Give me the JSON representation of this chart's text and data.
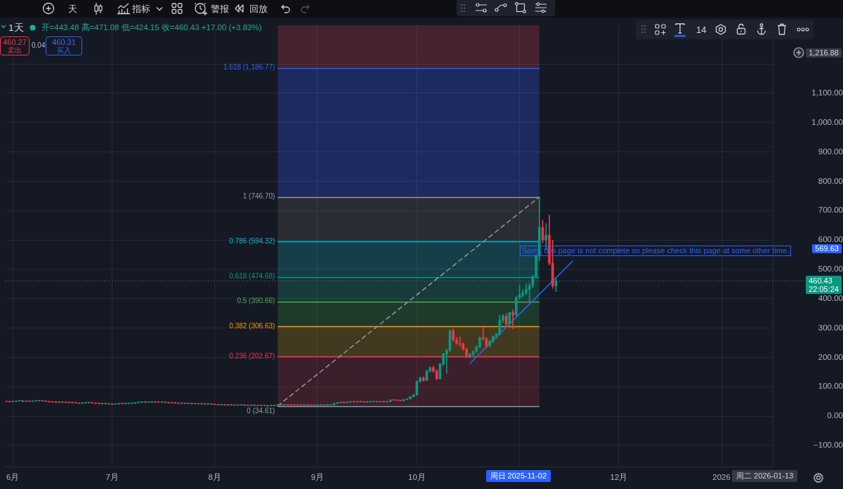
{
  "chart_data": {
    "type": "candlestick",
    "title": "1天",
    "subtitle": "开=443.48 高=471.08 低=424.15 收=460.43 +17.00 (+3.83%)",
    "x": [
      "2025-05-30",
      "2025-05-31",
      "2025-06-01",
      "2025-06-02",
      "2025-06-03",
      "2025-06-04",
      "2025-06-05",
      "2025-06-06",
      "2025-06-07",
      "2025-06-08",
      "2025-06-09",
      "2025-06-10",
      "2025-06-11",
      "2025-06-12",
      "2025-06-13",
      "2025-06-14",
      "2025-06-15",
      "2025-06-16",
      "2025-06-17",
      "2025-06-18",
      "2025-06-19",
      "2025-06-20",
      "2025-06-21",
      "2025-06-22",
      "2025-06-23",
      "2025-06-24",
      "2025-06-25",
      "2025-06-26",
      "2025-06-27",
      "2025-06-28",
      "2025-06-29",
      "2025-06-30",
      "2025-07-01",
      "2025-07-02",
      "2025-07-03",
      "2025-07-04",
      "2025-07-05",
      "2025-07-06",
      "2025-07-07",
      "2025-07-08",
      "2025-07-09",
      "2025-07-10",
      "2025-07-11",
      "2025-07-12",
      "2025-07-13",
      "2025-07-14",
      "2025-07-15",
      "2025-07-16",
      "2025-07-17",
      "2025-07-18",
      "2025-07-19",
      "2025-07-20",
      "2025-07-21",
      "2025-07-22",
      "2025-07-23",
      "2025-07-24",
      "2025-07-25",
      "2025-07-26",
      "2025-07-27",
      "2025-07-28",
      "2025-07-29",
      "2025-07-30",
      "2025-07-31",
      "2025-08-01",
      "2025-08-02",
      "2025-08-03",
      "2025-08-04",
      "2025-08-05",
      "2025-08-06",
      "2025-08-07",
      "2025-08-08",
      "2025-08-09",
      "2025-08-10",
      "2025-08-11",
      "2025-08-12",
      "2025-08-13",
      "2025-08-14",
      "2025-08-15",
      "2025-08-16",
      "2025-08-17",
      "2025-08-18",
      "2025-08-19",
      "2025-08-20",
      "2025-08-21",
      "2025-08-22",
      "2025-08-23",
      "2025-08-24",
      "2025-08-25",
      "2025-08-26",
      "2025-08-27",
      "2025-08-28",
      "2025-08-29",
      "2025-08-30",
      "2025-08-31",
      "2025-09-01",
      "2025-09-02",
      "2025-09-03",
      "2025-09-04",
      "2025-09-05",
      "2025-09-06",
      "2025-09-07",
      "2025-09-08",
      "2025-09-09",
      "2025-09-10",
      "2025-09-11",
      "2025-09-12",
      "2025-09-13",
      "2025-09-14",
      "2025-09-15",
      "2025-09-16",
      "2025-09-17",
      "2025-09-18",
      "2025-09-19",
      "2025-09-20",
      "2025-09-21",
      "2025-09-22",
      "2025-09-23",
      "2025-09-24",
      "2025-09-25",
      "2025-09-26",
      "2025-09-27",
      "2025-09-28",
      "2025-09-29",
      "2025-09-30",
      "2025-10-01",
      "2025-10-02",
      "2025-10-03",
      "2025-10-04",
      "2025-10-05",
      "2025-10-06",
      "2025-10-07",
      "2025-10-08",
      "2025-10-09",
      "2025-10-10",
      "2025-10-11",
      "2025-10-12",
      "2025-10-13",
      "2025-10-14",
      "2025-10-15",
      "2025-10-16",
      "2025-10-17",
      "2025-10-18",
      "2025-10-19",
      "2025-10-20",
      "2025-10-21",
      "2025-10-22",
      "2025-10-23",
      "2025-10-24",
      "2025-10-25",
      "2025-10-26",
      "2025-10-27",
      "2025-10-28",
      "2025-10-29",
      "2025-10-30",
      "2025-10-31",
      "2025-11-01",
      "2025-11-02",
      "2025-11-03",
      "2025-11-04",
      "2025-11-05",
      "2025-11-06",
      "2025-11-07",
      "2025-11-08",
      "2025-11-09",
      "2025-11-10",
      "2025-11-11",
      "2025-11-12"
    ],
    "ohlc": [
      [
        51,
        52,
        48,
        49
      ],
      [
        49,
        50,
        47.5,
        48.5
      ],
      [
        48.5,
        50,
        48,
        49.5
      ],
      [
        49.5,
        51.5,
        49,
        51
      ],
      [
        51,
        53,
        50.5,
        52.5
      ],
      [
        52.5,
        53,
        49,
        49.5
      ],
      [
        49.5,
        51,
        49,
        50.5
      ],
      [
        50.5,
        51.5,
        49.5,
        50
      ],
      [
        50,
        51.5,
        49.5,
        51
      ],
      [
        51,
        52,
        50,
        51.5
      ],
      [
        51.5,
        52.5,
        50.5,
        51
      ],
      [
        51,
        52.5,
        50.5,
        52
      ],
      [
        52,
        52.5,
        49,
        49.5
      ],
      [
        49.5,
        50,
        47.5,
        48
      ],
      [
        48,
        48.5,
        46.5,
        47.5
      ],
      [
        47.5,
        48,
        46.5,
        47
      ],
      [
        47,
        47.5,
        45.5,
        46.5
      ],
      [
        46.5,
        47.5,
        46,
        47
      ],
      [
        47,
        47.5,
        45.5,
        46
      ],
      [
        46,
        46.5,
        45,
        45.5
      ],
      [
        45.5,
        46,
        44.5,
        45
      ],
      [
        45,
        45.5,
        43.5,
        44
      ],
      [
        44,
        44.5,
        42.5,
        43
      ],
      [
        43,
        45,
        42.5,
        44.5
      ],
      [
        44.5,
        46,
        44,
        45.5
      ],
      [
        45.5,
        46.5,
        44.5,
        45
      ],
      [
        45,
        45.5,
        43.5,
        44
      ],
      [
        44,
        44.5,
        42.5,
        43
      ],
      [
        43,
        43.5,
        41.5,
        42
      ],
      [
        42,
        42.5,
        40.5,
        41.5
      ],
      [
        41.5,
        42.5,
        40.5,
        42
      ],
      [
        42,
        42.5,
        40,
        40.5
      ],
      [
        40.5,
        41,
        39.5,
        40
      ],
      [
        40,
        41.5,
        39.5,
        41
      ],
      [
        41,
        42.5,
        40.5,
        42
      ],
      [
        42,
        42.5,
        41,
        41.5
      ],
      [
        41.5,
        43,
        41,
        42.5
      ],
      [
        42.5,
        43.5,
        42,
        43
      ],
      [
        43,
        44,
        42.5,
        43.5
      ],
      [
        43.5,
        46.5,
        43,
        46
      ],
      [
        46,
        47,
        45,
        46.5
      ],
      [
        46.5,
        48,
        46,
        47.5
      ],
      [
        47.5,
        48,
        46,
        46.5
      ],
      [
        46.5,
        47.5,
        46,
        47
      ],
      [
        47,
        48,
        46.5,
        47.5
      ],
      [
        47.5,
        48.5,
        46.5,
        47
      ],
      [
        47,
        47.5,
        46,
        46.5
      ],
      [
        46.5,
        47.5,
        46,
        47
      ],
      [
        47,
        47.5,
        45.5,
        46
      ],
      [
        46,
        46.5,
        44.5,
        45
      ],
      [
        45,
        45.5,
        44,
        44.5
      ],
      [
        44.5,
        45,
        43.5,
        44
      ],
      [
        44,
        44.5,
        42.5,
        43
      ],
      [
        43,
        44,
        42,
        43.5
      ],
      [
        43.5,
        44,
        42,
        42.5
      ],
      [
        42.5,
        43.5,
        41.5,
        43
      ],
      [
        43,
        43.5,
        41,
        41.5
      ],
      [
        41.5,
        42.5,
        41,
        42
      ],
      [
        42,
        42.5,
        40.5,
        41
      ],
      [
        41,
        42,
        40.5,
        41.5
      ],
      [
        41.5,
        42,
        40,
        40.5
      ],
      [
        40.5,
        41.5,
        40,
        41
      ],
      [
        41,
        41.5,
        39.5,
        40
      ],
      [
        40,
        40.5,
        38.5,
        39
      ],
      [
        39,
        39.5,
        37.5,
        38
      ],
      [
        38,
        39,
        37.5,
        38.5
      ],
      [
        38.5,
        39,
        37,
        37.5
      ],
      [
        37.5,
        38,
        36.5,
        37
      ],
      [
        37,
        38,
        36.5,
        37.5
      ],
      [
        37.5,
        38,
        36,
        36.5
      ],
      [
        36.5,
        37.5,
        36,
        37
      ],
      [
        37,
        38,
        36.5,
        37.5
      ],
      [
        37.5,
        38,
        36,
        36.5
      ],
      [
        36.5,
        37,
        35.5,
        36
      ],
      [
        36,
        37,
        35.5,
        36.5
      ],
      [
        36.5,
        37,
        35.5,
        36
      ],
      [
        36,
        36.5,
        35,
        35.5
      ],
      [
        35.5,
        36.5,
        35,
        36
      ],
      [
        36,
        36.5,
        35,
        35.5
      ],
      [
        35.5,
        36,
        35,
        35.5
      ],
      [
        35.5,
        36,
        34.8,
        35
      ],
      [
        35,
        36,
        34.9,
        35.5
      ],
      [
        35.5,
        40,
        34.61,
        37.5
      ],
      [
        37.5,
        38,
        36.5,
        37
      ],
      [
        37,
        38.5,
        36.5,
        38
      ],
      [
        38,
        39,
        37,
        37.5
      ],
      [
        37.5,
        38,
        36.5,
        37
      ],
      [
        37,
        37.5,
        36,
        36.5
      ],
      [
        36.5,
        37.5,
        36,
        37
      ],
      [
        37,
        37.5,
        36,
        36.5
      ],
      [
        36.5,
        37.5,
        36,
        37
      ],
      [
        37,
        37.5,
        36,
        36.5
      ],
      [
        36.5,
        37,
        35.5,
        36
      ],
      [
        36,
        37,
        35.5,
        36.5
      ],
      [
        36.5,
        37.5,
        36,
        37
      ],
      [
        37,
        37.5,
        36,
        36.5
      ],
      [
        36.5,
        37.5,
        36,
        37
      ],
      [
        37,
        38,
        36.5,
        37.5
      ],
      [
        37.5,
        38.5,
        37,
        38
      ],
      [
        38,
        43.5,
        37.5,
        43
      ],
      [
        43,
        46,
        42.5,
        45.5
      ],
      [
        45.5,
        47.5,
        44.5,
        47
      ],
      [
        47,
        48,
        45,
        45.5
      ],
      [
        45.5,
        48,
        45,
        47.5
      ],
      [
        47.5,
        49,
        47,
        48.5
      ],
      [
        48.5,
        49.5,
        47.5,
        48
      ],
      [
        48,
        49.5,
        47.5,
        49
      ],
      [
        49,
        50,
        48,
        48.5
      ],
      [
        48.5,
        49,
        47,
        47.5
      ],
      [
        47.5,
        48.5,
        47,
        48
      ],
      [
        48,
        49,
        47.5,
        48.5
      ],
      [
        48.5,
        49.5,
        48,
        49
      ],
      [
        49,
        49.5,
        47.5,
        48
      ],
      [
        48,
        49,
        47.5,
        48.5
      ],
      [
        48.5,
        49,
        47.5,
        48
      ],
      [
        48,
        50,
        47.5,
        49.5
      ],
      [
        49.5,
        56,
        49,
        55
      ],
      [
        55,
        57,
        53,
        54
      ],
      [
        54,
        55,
        52,
        53
      ],
      [
        53,
        54,
        51.5,
        52.5
      ],
      [
        52.5,
        57,
        52,
        56.5
      ],
      [
        56.5,
        60,
        56,
        59
      ],
      [
        59,
        67,
        58,
        66
      ],
      [
        66,
        74,
        64,
        72
      ],
      [
        72,
        120,
        71,
        118
      ],
      [
        118,
        133,
        114,
        130
      ],
      [
        130,
        134,
        119,
        122
      ],
      [
        122,
        157,
        120,
        153
      ],
      [
        153,
        168,
        150,
        165
      ],
      [
        165,
        170,
        150,
        153
      ],
      [
        153,
        158,
        124,
        127
      ],
      [
        127,
        180,
        125,
        177
      ],
      [
        177,
        214,
        172,
        212
      ],
      [
        212,
        228,
        146,
        224
      ],
      [
        224,
        294,
        220,
        291
      ],
      [
        291,
        296,
        255,
        259
      ],
      [
        259,
        268,
        244,
        248
      ],
      [
        248,
        270,
        238,
        245
      ],
      [
        245,
        250,
        224,
        228
      ],
      [
        228,
        232,
        200,
        204
      ],
      [
        204,
        214,
        198,
        210
      ],
      [
        210,
        222,
        206,
        220
      ],
      [
        220,
        240,
        216,
        236
      ],
      [
        236,
        270,
        232,
        267
      ],
      [
        267,
        303,
        258,
        263
      ],
      [
        263,
        268,
        234,
        240
      ],
      [
        240,
        258,
        236,
        255
      ],
      [
        255,
        274,
        250,
        271
      ],
      [
        271,
        282,
        264,
        279
      ],
      [
        279,
        345,
        276,
        326
      ],
      [
        326,
        346,
        318,
        341
      ],
      [
        341,
        350,
        308,
        314
      ],
      [
        314,
        356,
        310,
        353
      ],
      [
        353,
        362,
        298,
        345
      ],
      [
        345,
        407,
        340,
        404
      ],
      [
        404,
        447,
        398,
        412
      ],
      [
        412,
        430,
        405,
        420
      ],
      [
        420,
        450,
        414,
        432
      ],
      [
        432,
        452,
        389,
        444
      ],
      [
        444,
        480,
        438,
        475
      ],
      [
        475,
        550,
        470,
        545
      ],
      [
        545,
        746.7,
        530,
        643
      ],
      [
        643,
        667,
        590,
        600
      ],
      [
        600,
        656,
        569,
        616
      ],
      [
        616,
        685,
        515,
        521
      ],
      [
        521,
        600,
        435,
        443.48
      ],
      [
        443.48,
        471.08,
        424.15,
        460.43
      ]
    ],
    "colors": [
      "#f23645",
      "#f23645",
      "#089981",
      "#089981",
      "#089981",
      "#f23645",
      "#089981",
      "#f23645",
      "#089981",
      "#089981",
      "#f23645",
      "#089981",
      "#f23645",
      "#f23645",
      "#f23645",
      "#f23645",
      "#f23645",
      "#089981",
      "#f23645",
      "#f23645",
      "#f23645",
      "#f23645",
      "#f23645",
      "#089981",
      "#089981",
      "#f23645",
      "#f23645",
      "#f23645",
      "#f23645",
      "#f23645",
      "#089981",
      "#f23645",
      "#f23645",
      "#089981",
      "#089981",
      "#f23645",
      "#089981",
      "#089981",
      "#089981",
      "#089981",
      "#089981",
      "#089981",
      "#f23645",
      "#089981",
      "#089981",
      "#f23645",
      "#f23645",
      "#089981",
      "#f23645",
      "#f23645",
      "#f23645",
      "#f23645",
      "#f23645",
      "#089981",
      "#f23645",
      "#089981",
      "#f23645",
      "#089981",
      "#f23645",
      "#089981",
      "#f23645",
      "#089981",
      "#f23645",
      "#f23645",
      "#f23645",
      "#089981",
      "#f23645",
      "#f23645",
      "#089981",
      "#f23645",
      "#089981",
      "#089981",
      "#f23645",
      "#f23645",
      "#089981",
      "#f23645",
      "#f23645",
      "#089981",
      "#f23645",
      "#089981",
      "#f23645",
      "#089981",
      "#089981",
      "#f23645",
      "#089981",
      "#f23645",
      "#f23645",
      "#f23645",
      "#089981",
      "#f23645",
      "#089981",
      "#f23645",
      "#f23645",
      "#089981",
      "#089981",
      "#f23645",
      "#089981",
      "#089981",
      "#089981",
      "#089981",
      "#089981",
      "#089981",
      "#f23645",
      "#089981",
      "#089981",
      "#f23645",
      "#089981",
      "#f23645",
      "#f23645",
      "#089981",
      "#089981",
      "#089981",
      "#f23645",
      "#089981",
      "#f23645",
      "#089981",
      "#089981",
      "#f23645",
      "#f23645",
      "#f23645",
      "#089981",
      "#089981",
      "#089981",
      "#089981",
      "#089981",
      "#089981",
      "#f23645",
      "#089981",
      "#089981",
      "#f23645",
      "#f23645",
      "#089981",
      "#089981",
      "#089981",
      "#089981",
      "#f23645",
      "#f23645",
      "#f23645",
      "#f23645",
      "#f23645",
      "#089981",
      "#089981",
      "#089981",
      "#089981",
      "#f23645",
      "#f23645",
      "#089981",
      "#089981",
      "#089981",
      "#089981",
      "#089981",
      "#f23645",
      "#089981",
      "#f23645",
      "#089981",
      "#089981",
      "#089981",
      "#089981",
      "#089981",
      "#089981",
      "#089981",
      "#089981",
      "#f23645",
      "#089981",
      "#f23645",
      "#f23645",
      "#089981"
    ],
    "series": [
      {
        "type": "line",
        "x": [
          "2025-08-20",
          "2025-11-07"
        ],
        "values": [
          34.61,
          746.7
        ],
        "color": "#9598a1",
        "line_style": "dashed"
      },
      {
        "type": "line",
        "x": [
          "2025-10-17",
          "2025-11-17"
        ],
        "values": [
          179,
          528
        ],
        "color": "#2962ff"
      }
    ],
    "xlim": [
      "2025-05-29T20:00",
      "2026-01-16T11:00"
    ],
    "xticks": [
      {
        "value": "2025-06-01",
        "label": "6月"
      },
      {
        "value": "2025-07-01",
        "label": "7月"
      },
      {
        "value": "2025-08-01",
        "label": "8月"
      },
      {
        "value": "2025-09-01",
        "label": "9月"
      },
      {
        "value": "2025-10-01",
        "label": "10月"
      },
      {
        "value": "2025-11-01",
        "label": null
      },
      {
        "value": "2025-12-01",
        "label": "12月"
      },
      {
        "value": "2026-01-01",
        "label": "2026"
      }
    ],
    "ylim": [
      -172,
      1332
    ],
    "yticks": [
      {
        "value": -100,
        "label": "−100.00"
      },
      {
        "value": 0,
        "label": "0.00"
      },
      {
        "value": 100,
        "label": "100.00"
      },
      {
        "value": 200,
        "label": "200.00"
      },
      {
        "value": 300,
        "label": "300.00"
      },
      {
        "value": 400,
        "label": "400.00"
      },
      {
        "value": 500,
        "label": "500.00"
      },
      {
        "value": 600,
        "label": "600.00"
      },
      {
        "value": 700,
        "label": "700.00"
      },
      {
        "value": 800,
        "label": "800.00"
      },
      {
        "value": 900,
        "label": "900.00"
      },
      {
        "value": 1000,
        "label": "1,000.00"
      },
      {
        "value": 1100,
        "label": "1,100.00"
      },
      {
        "value": 1200,
        "label": null
      }
    ],
    "grid": true,
    "ref_lines": [
      {
        "axis": "y",
        "value": 1186.77,
        "label": "1.618 (1,186.77)",
        "color": "#2962ff"
      },
      {
        "axis": "y",
        "value": 746.7,
        "label": "1 (746.70)",
        "color": "#9598a1"
      },
      {
        "axis": "y",
        "value": 594.32,
        "label": "0.786 (594.32)",
        "color": "#00bcd4"
      },
      {
        "axis": "y",
        "value": 474.68,
        "label": "0.618 (474.68)",
        "color": "#089981"
      },
      {
        "axis": "y",
        "value": 390.66,
        "label": "0.5 (390.66)",
        "color": "#4caf50"
      },
      {
        "axis": "y",
        "value": 306.63,
        "label": "0.382 (306.63)",
        "color": "#ff9800"
      },
      {
        "axis": "y",
        "value": 202.67,
        "label": "0.236 (202.67)",
        "color": "#f23645"
      },
      {
        "axis": "y",
        "value": 34.61,
        "label": "0 (34.61)",
        "color": "#9598a1"
      },
      {
        "axis": "y",
        "value": 460.43,
        "label": "460.43",
        "color": "#787b86",
        "line_style": "dotted"
      }
    ],
    "bands": [
      {
        "axis": "y",
        "from": 1186.77,
        "to": 1332,
        "color": "#45222d"
      },
      {
        "axis": "y",
        "from": 746.7,
        "to": 1186.77,
        "color": "#1d2a60"
      },
      {
        "axis": "y",
        "from": 594.32,
        "to": 746.7,
        "color": "#2a2c33"
      },
      {
        "axis": "y",
        "from": 474.68,
        "to": 594.32,
        "color": "#153f48"
      },
      {
        "axis": "y",
        "from": 390.66,
        "to": 474.68,
        "color": "#173a3a"
      },
      {
        "axis": "y",
        "from": 306.63,
        "to": 390.66,
        "color": "#1e3a2b"
      },
      {
        "axis": "y",
        "from": 202.67,
        "to": 306.63,
        "color": "#433920"
      },
      {
        "axis": "y",
        "from": 34.61,
        "to": 202.67,
        "color": "#3b1f2b"
      }
    ],
    "annotations": [
      "天",
      "指标",
      "警报",
      "回放",
      "460.27",
      "卖出",
      "0.04",
      "460.31",
      "买入",
      "14",
      "22:05:24",
      "Sorry, this page is not complete so please check this page at some other time.",
      "569.63",
      "1,216.88",
      "周日 2025-11-02",
      "周二 2026-01-13"
    ]
  }
}
